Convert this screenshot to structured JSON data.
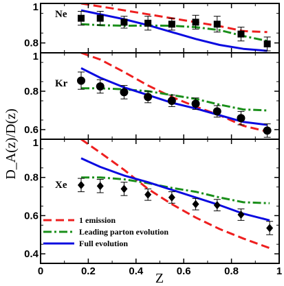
{
  "chart_data": {
    "type": "line",
    "xlabel": "Z",
    "ylabel": "D_A(z)/D(z)",
    "xlim": [
      0,
      1
    ],
    "xticks": [
      "0",
      "0.2",
      "0.4",
      "0.6",
      "0.8",
      "1"
    ],
    "legend": {
      "placement": "bottom-left",
      "entries": [
        "1 emission",
        "Leading parton evolution",
        "Full evolution"
      ]
    },
    "panels": [
      {
        "label": "Ne",
        "ylim": [
          0.75,
          1.0
        ],
        "yticks": [
          {
            "v": 0.8,
            "t": "0.8"
          },
          {
            "v": 1.0,
            "t": "1"
          }
        ],
        "data": {
          "marker": "square",
          "x": [
            0.17,
            0.25,
            0.35,
            0.45,
            0.55,
            0.65,
            0.74,
            0.84,
            0.95
          ],
          "y": [
            0.925,
            0.925,
            0.905,
            0.9,
            0.895,
            0.905,
            0.895,
            0.845,
            0.795
          ],
          "err": [
            0.035,
            0.035,
            0.03,
            0.035,
            0.03,
            0.035,
            0.04,
            0.035,
            0.035
          ]
        },
        "series": [
          {
            "name": "1 emission",
            "color": "#ee1f1f",
            "dash": "dash",
            "x": [
              0.17,
              0.3,
              0.45,
              0.6,
              0.75,
              0.85,
              0.95
            ],
            "y": [
              1.0,
              0.975,
              0.945,
              0.915,
              0.885,
              0.86,
              0.855
            ]
          },
          {
            "name": "Leading parton evolution",
            "color": "#1a8f1a",
            "dash": "dashdot",
            "x": [
              0.17,
              0.25,
              0.35,
              0.45,
              0.55,
              0.65,
              0.75,
              0.85,
              0.95
            ],
            "y": [
              0.895,
              0.89,
              0.887,
              0.888,
              0.887,
              0.88,
              0.865,
              0.835,
              0.81
            ]
          },
          {
            "name": "Full evolution",
            "color": "#0a0ae0",
            "dash": "solid",
            "x": [
              0.17,
              0.25,
              0.35,
              0.45,
              0.55,
              0.65,
              0.75,
              0.85,
              0.95
            ],
            "y": [
              0.965,
              0.945,
              0.92,
              0.89,
              0.855,
              0.82,
              0.79,
              0.77,
              0.76
            ]
          }
        ]
      },
      {
        "label": "Kr",
        "ylim": [
          0.55,
          1.0
        ],
        "yticks": [
          {
            "v": 0.6,
            "t": "0.6"
          },
          {
            "v": 0.8,
            "t": "0.8"
          },
          {
            "v": 1.0,
            "t": "1"
          }
        ],
        "data": {
          "marker": "circle",
          "x": [
            0.17,
            0.25,
            0.35,
            0.45,
            0.55,
            0.65,
            0.74,
            0.84,
            0.95
          ],
          "y": [
            0.855,
            0.825,
            0.795,
            0.77,
            0.75,
            0.735,
            0.695,
            0.66,
            0.595
          ],
          "err": [
            0.045,
            0.035,
            0.035,
            0.03,
            0.03,
            0.03,
            0.03,
            0.035,
            0.035
          ]
        },
        "series": [
          {
            "name": "1 emission",
            "color": "#ee1f1f",
            "dash": "dash",
            "x": [
              0.17,
              0.25,
              0.35,
              0.45,
              0.55,
              0.65,
              0.75,
              0.85,
              0.95
            ],
            "y": [
              1.0,
              0.965,
              0.9,
              0.83,
              0.77,
              0.72,
              0.675,
              0.62,
              0.59
            ]
          },
          {
            "name": "Leading parton evolution",
            "color": "#1a8f1a",
            "dash": "dashdot",
            "x": [
              0.17,
              0.25,
              0.35,
              0.45,
              0.55,
              0.65,
              0.75,
              0.85,
              0.95
            ],
            "y": [
              0.815,
              0.815,
              0.81,
              0.8,
              0.78,
              0.76,
              0.73,
              0.705,
              0.7
            ]
          },
          {
            "name": "Full evolution",
            "color": "#0a0ae0",
            "dash": "solid",
            "x": [
              0.17,
              0.25,
              0.35,
              0.45,
              0.55,
              0.65,
              0.75,
              0.85,
              0.95
            ],
            "y": [
              0.92,
              0.87,
              0.82,
              0.78,
              0.74,
              0.71,
              0.675,
              0.64,
              0.625
            ]
          }
        ]
      },
      {
        "label": "Xe",
        "ylim": [
          0.35,
          1.0
        ],
        "yticks": [
          {
            "v": 0.4,
            "t": "0.4"
          },
          {
            "v": 0.6,
            "t": "0.6"
          },
          {
            "v": 0.8,
            "t": "0.8"
          },
          {
            "v": 1.0,
            "t": "1"
          }
        ],
        "data": {
          "marker": "diamond",
          "x": [
            0.17,
            0.25,
            0.35,
            0.45,
            0.55,
            0.65,
            0.74,
            0.84,
            0.96
          ],
          "y": [
            0.76,
            0.755,
            0.74,
            0.71,
            0.695,
            0.66,
            0.655,
            0.605,
            0.535
          ],
          "err": [
            0.035,
            0.035,
            0.035,
            0.03,
            0.03,
            0.03,
            0.03,
            0.03,
            0.035
          ]
        },
        "series": [
          {
            "name": "1 emission",
            "color": "#ee1f1f",
            "dash": "dash",
            "x": [
              0.17,
              0.25,
              0.35,
              0.45,
              0.55,
              0.65,
              0.75,
              0.85,
              0.96
            ],
            "y": [
              1.0,
              0.93,
              0.84,
              0.74,
              0.66,
              0.59,
              0.53,
              0.48,
              0.43
            ]
          },
          {
            "name": "Leading parton evolution",
            "color": "#1a8f1a",
            "dash": "dashdot",
            "x": [
              0.17,
              0.25,
              0.35,
              0.45,
              0.55,
              0.65,
              0.75,
              0.85,
              0.96
            ],
            "y": [
              0.8,
              0.8,
              0.79,
              0.77,
              0.745,
              0.725,
              0.695,
              0.67,
              0.665
            ]
          },
          {
            "name": "Full evolution",
            "color": "#0a0ae0",
            "dash": "solid",
            "x": [
              0.17,
              0.25,
              0.35,
              0.45,
              0.55,
              0.65,
              0.75,
              0.85,
              0.96
            ],
            "y": [
              0.9,
              0.855,
              0.81,
              0.775,
              0.735,
              0.695,
              0.655,
              0.61,
              0.575
            ]
          }
        ]
      }
    ]
  }
}
